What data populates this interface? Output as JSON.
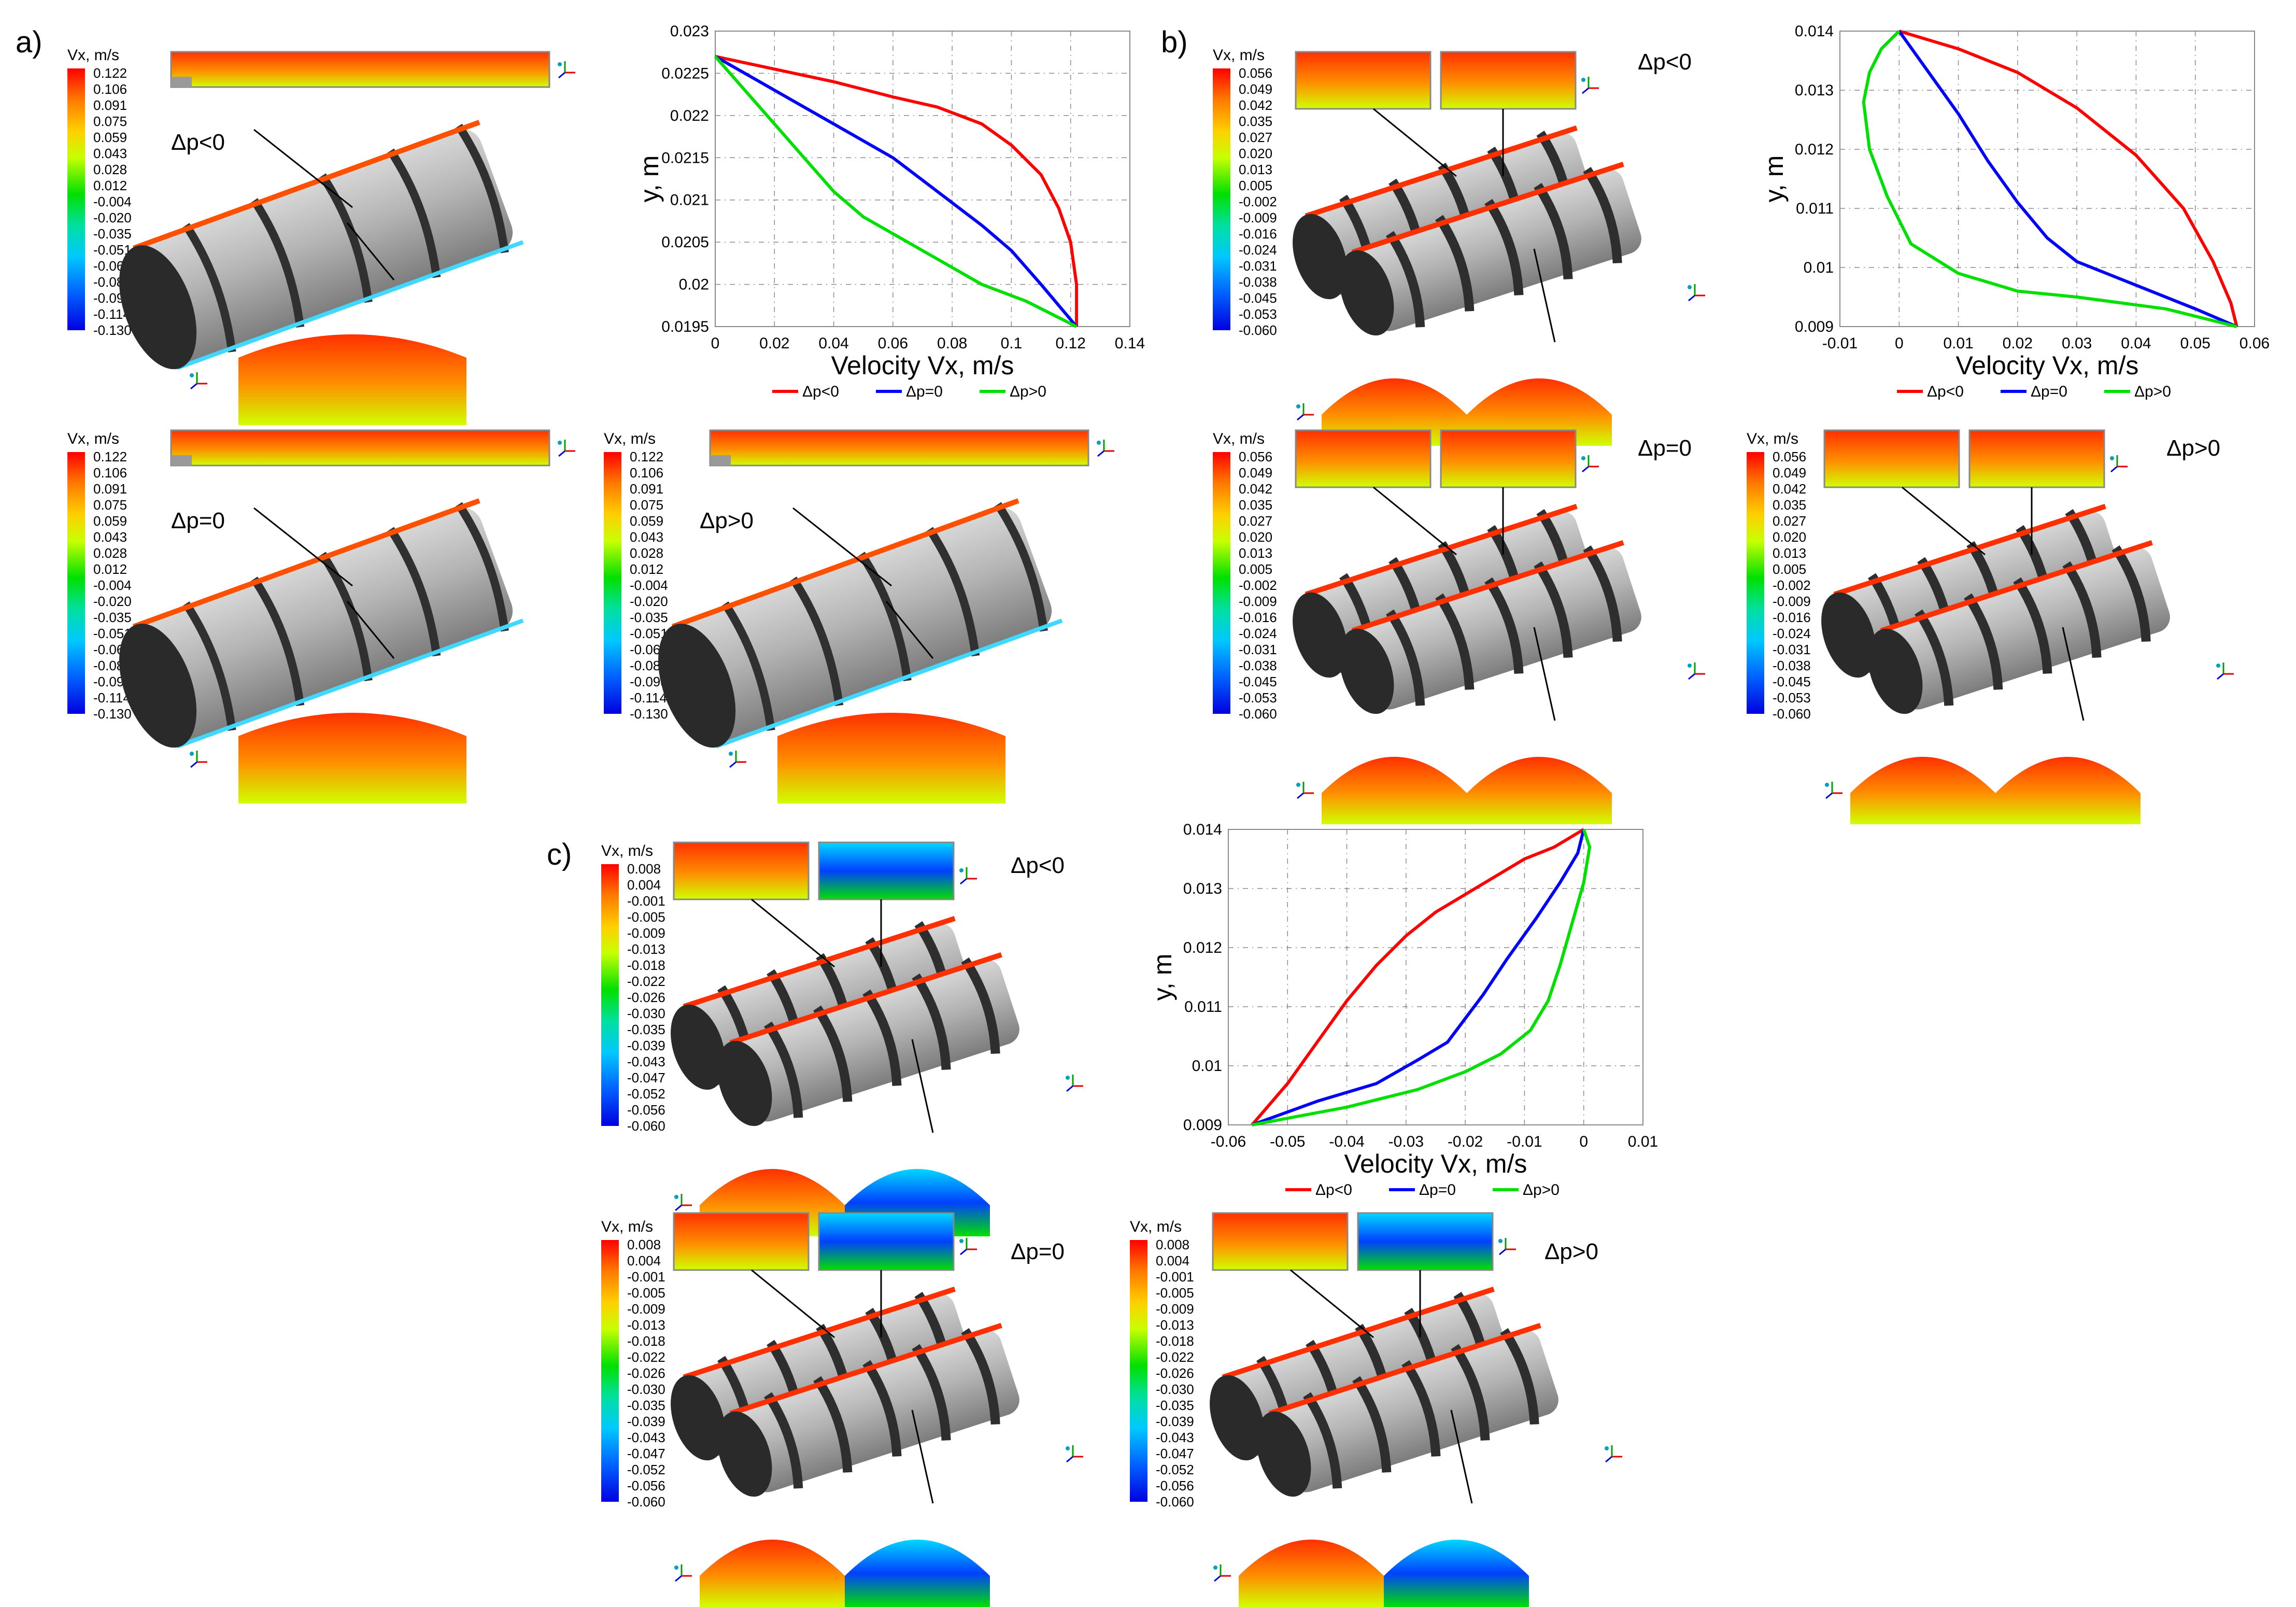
{
  "labels": {
    "panel_a": "a)",
    "panel_b": "b)",
    "panel_c": "c)"
  },
  "colorbar_title": "Vx, m/s",
  "colorbars": {
    "a": [
      "0.122",
      "0.106",
      "0.091",
      "0.075",
      "0.059",
      "0.043",
      "0.028",
      "0.012",
      "-0.004",
      "-0.020",
      "-0.035",
      "-0.051",
      "-0.067",
      "-0.083",
      "-0.098",
      "-0.114",
      "-0.130"
    ],
    "b": [
      "0.056",
      "0.049",
      "0.042",
      "0.035",
      "0.027",
      "0.020",
      "0.013",
      "0.005",
      "-0.002",
      "-0.009",
      "-0.016",
      "-0.024",
      "-0.031",
      "-0.038",
      "-0.045",
      "-0.053",
      "-0.060"
    ],
    "c": [
      "0.008",
      "0.004",
      "-0.001",
      "-0.005",
      "-0.009",
      "-0.013",
      "-0.018",
      "-0.022",
      "-0.026",
      "-0.030",
      "-0.035",
      "-0.039",
      "-0.043",
      "-0.047",
      "-0.052",
      "-0.056",
      "-0.060"
    ]
  },
  "conditions": {
    "neg": "Δp<0",
    "zero": "Δp=0",
    "pos": "Δp>0"
  },
  "colors": {
    "neg": "#ff0000",
    "zero": "#0000ff",
    "pos": "#00e000"
  },
  "chart_data": [
    {
      "type": "line",
      "panel": "a",
      "xlabel": "Velocity Vx, m/s",
      "ylabel": "y, m",
      "xlim": [
        0,
        0.14
      ],
      "ylim": [
        0.0195,
        0.023
      ],
      "xticks": [
        "0",
        "0.02",
        "0.04",
        "0.06",
        "0.08",
        "0.1",
        "0.12",
        "0.14"
      ],
      "yticks": [
        "0.0195",
        "0.02",
        "0.0205",
        "0.021",
        "0.0215",
        "0.022",
        "0.0225",
        "0.023"
      ],
      "grid": true,
      "legend": "bottom",
      "series": [
        {
          "name": "Δp<0",
          "color": "#ff0000",
          "x": [
            0,
            0.02,
            0.04,
            0.06,
            0.075,
            0.09,
            0.1,
            0.11,
            0.116,
            0.12,
            0.122,
            0.122
          ],
          "y": [
            0.0227,
            0.02255,
            0.0224,
            0.02222,
            0.0221,
            0.0219,
            0.02165,
            0.0213,
            0.0209,
            0.0205,
            0.02,
            0.0195
          ]
        },
        {
          "name": "Δp=0",
          "color": "#0000ff",
          "x": [
            0,
            0.01,
            0.02,
            0.04,
            0.06,
            0.075,
            0.09,
            0.1,
            0.11,
            0.122
          ],
          "y": [
            0.0227,
            0.0225,
            0.0223,
            0.0219,
            0.0215,
            0.0211,
            0.0207,
            0.0204,
            0.02,
            0.0195
          ]
        },
        {
          "name": "Δp>0",
          "color": "#00e000",
          "x": [
            0,
            0.01,
            0.02,
            0.03,
            0.04,
            0.05,
            0.06,
            0.075,
            0.09,
            0.105,
            0.122
          ],
          "y": [
            0.0227,
            0.0223,
            0.0219,
            0.0215,
            0.0211,
            0.0208,
            0.0206,
            0.0203,
            0.02,
            0.0198,
            0.0195
          ]
        }
      ]
    },
    {
      "type": "line",
      "panel": "b",
      "xlabel": "Velocity Vx, m/s",
      "ylabel": "y, m",
      "xlim": [
        -0.01,
        0.06
      ],
      "ylim": [
        0.009,
        0.014
      ],
      "xticks": [
        "-0.01",
        "0",
        "0.01",
        "0.02",
        "0.03",
        "0.04",
        "0.05",
        "0.06"
      ],
      "yticks": [
        "0.009",
        "0.01",
        "0.011",
        "0.012",
        "0.013",
        "0.014"
      ],
      "grid": true,
      "legend": "bottom",
      "series": [
        {
          "name": "Δp<0",
          "color": "#ff0000",
          "x": [
            0,
            0.01,
            0.02,
            0.03,
            0.04,
            0.048,
            0.053,
            0.056,
            0.057
          ],
          "y": [
            0.014,
            0.0137,
            0.0133,
            0.0127,
            0.0119,
            0.011,
            0.0101,
            0.0094,
            0.009
          ]
        },
        {
          "name": "Δp=0",
          "color": "#0000ff",
          "x": [
            0,
            0.005,
            0.01,
            0.015,
            0.02,
            0.025,
            0.03,
            0.04,
            0.05,
            0.057
          ],
          "y": [
            0.014,
            0.0133,
            0.0126,
            0.0118,
            0.0111,
            0.0105,
            0.0101,
            0.0097,
            0.0093,
            0.009
          ]
        },
        {
          "name": "Δp>0",
          "color": "#00e000",
          "x": [
            0,
            -0.003,
            -0.005,
            -0.006,
            -0.005,
            -0.002,
            0.002,
            0.01,
            0.02,
            0.03,
            0.045,
            0.057
          ],
          "y": [
            0.014,
            0.0137,
            0.0133,
            0.0128,
            0.012,
            0.0112,
            0.0104,
            0.0099,
            0.0096,
            0.0095,
            0.0093,
            0.009
          ]
        }
      ]
    },
    {
      "type": "line",
      "panel": "c",
      "xlabel": "Velocity Vx, m/s",
      "ylabel": "y, m",
      "xlim": [
        -0.06,
        0.01
      ],
      "ylim": [
        0.009,
        0.014
      ],
      "xticks": [
        "-0.06",
        "-0.05",
        "-0.04",
        "-0.03",
        "-0.02",
        "-0.01",
        "0",
        "0.01"
      ],
      "yticks": [
        "0.009",
        "0.01",
        "0.011",
        "0.012",
        "0.013",
        "0.014"
      ],
      "grid": true,
      "legend": "bottom",
      "series": [
        {
          "name": "Δp<0",
          "color": "#ff0000",
          "x": [
            -0.056,
            -0.05,
            -0.045,
            -0.04,
            -0.035,
            -0.03,
            -0.025,
            -0.02,
            -0.015,
            -0.01,
            -0.005,
            0
          ],
          "y": [
            0.009,
            0.0097,
            0.0104,
            0.0111,
            0.0117,
            0.0122,
            0.0126,
            0.0129,
            0.0132,
            0.0135,
            0.0137,
            0.014
          ]
        },
        {
          "name": "Δp=0",
          "color": "#0000ff",
          "x": [
            -0.056,
            -0.045,
            -0.035,
            -0.028,
            -0.023,
            -0.02,
            -0.017,
            -0.013,
            -0.008,
            -0.004,
            -0.001,
            0
          ],
          "y": [
            0.009,
            0.0094,
            0.0097,
            0.0101,
            0.0104,
            0.0108,
            0.0112,
            0.0118,
            0.0125,
            0.0131,
            0.0136,
            0.014
          ]
        },
        {
          "name": "Δp>0",
          "color": "#00e000",
          "x": [
            -0.056,
            -0.04,
            -0.028,
            -0.02,
            -0.014,
            -0.009,
            -0.006,
            -0.004,
            -0.002,
            0,
            0.001,
            0
          ],
          "y": [
            0.009,
            0.0093,
            0.0096,
            0.0099,
            0.0102,
            0.0106,
            0.0111,
            0.0117,
            0.0124,
            0.0131,
            0.0137,
            0.014
          ]
        }
      ]
    }
  ]
}
